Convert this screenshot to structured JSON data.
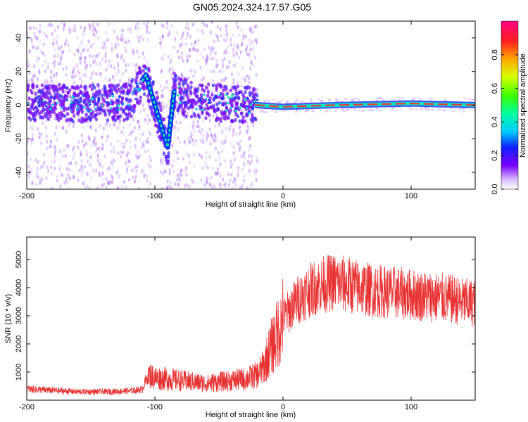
{
  "title": "GN05.2024.324.17.57.G05",
  "colors": {
    "snr_line": "#e83232",
    "spectrogram_cloud": "#a25cf0"
  },
  "chart_data": [
    {
      "type": "heatmap",
      "xlabel": "Height of straight line (km)",
      "ylabel": "Frequency (Hz)",
      "xlim": [
        -200,
        150
      ],
      "ylim": [
        -50,
        50
      ],
      "xticks": [
        -200,
        -100,
        0,
        100
      ],
      "xtick_labels": [
        "-200",
        "-100",
        "0",
        "100"
      ],
      "yticks": [
        -40,
        -20,
        0,
        20,
        40
      ],
      "ytick_labels": [
        "-40",
        "-20",
        "0",
        "20",
        "40"
      ],
      "colorbar": {
        "label": "Normalized spectral amplitude",
        "range": [
          0,
          1
        ],
        "ticks": [
          0,
          0.2,
          0.4,
          0.6,
          0.8
        ],
        "tick_labels": [
          "0.0",
          "0.2",
          "0.4",
          "0.6",
          "0.8"
        ],
        "colormap": "rainbow"
      },
      "ridge": [
        {
          "x": -200,
          "y": 2
        },
        {
          "x": -160,
          "y": 1
        },
        {
          "x": -120,
          "y": 2
        },
        {
          "x": -107,
          "y": 18
        },
        {
          "x": -100,
          "y": 0
        },
        {
          "x": -90,
          "y": -25
        },
        {
          "x": -85,
          "y": 8
        },
        {
          "x": -70,
          "y": 2
        },
        {
          "x": -40,
          "y": 1
        },
        {
          "x": -20,
          "y": 0
        },
        {
          "x": 0,
          "y": -1
        },
        {
          "x": 40,
          "y": 0
        },
        {
          "x": 100,
          "y": 1
        },
        {
          "x": 150,
          "y": 0
        }
      ]
    },
    {
      "type": "line",
      "xlabel": "Height of straight line (km)",
      "ylabel": "SNR (10 * v/v)",
      "xlim": [
        -200,
        150
      ],
      "ylim": [
        0,
        5800
      ],
      "xticks": [
        -200,
        -100,
        0,
        100
      ],
      "xtick_labels": [
        "-200",
        "-100",
        "0",
        "100"
      ],
      "yticks": [
        1000,
        2000,
        3000,
        4000,
        5000
      ],
      "ytick_labels": [
        "1000",
        "2000",
        "3000",
        "4000",
        "5000"
      ],
      "x": [
        -200,
        -180,
        -160,
        -140,
        -120,
        -110,
        -105,
        -100,
        -90,
        -80,
        -70,
        -60,
        -50,
        -40,
        -30,
        -20,
        -15,
        -10,
        -5,
        0,
        10,
        20,
        30,
        40,
        50,
        60,
        70,
        80,
        90,
        100,
        110,
        120,
        130,
        140,
        150
      ],
      "y": [
        400,
        350,
        300,
        300,
        330,
        380,
        900,
        800,
        750,
        700,
        650,
        600,
        650,
        700,
        750,
        900,
        1200,
        1800,
        2300,
        2900,
        3500,
        3900,
        4100,
        4200,
        4100,
        4000,
        3900,
        3850,
        3800,
        3750,
        3700,
        3650,
        3600,
        3500,
        3450
      ]
    }
  ]
}
